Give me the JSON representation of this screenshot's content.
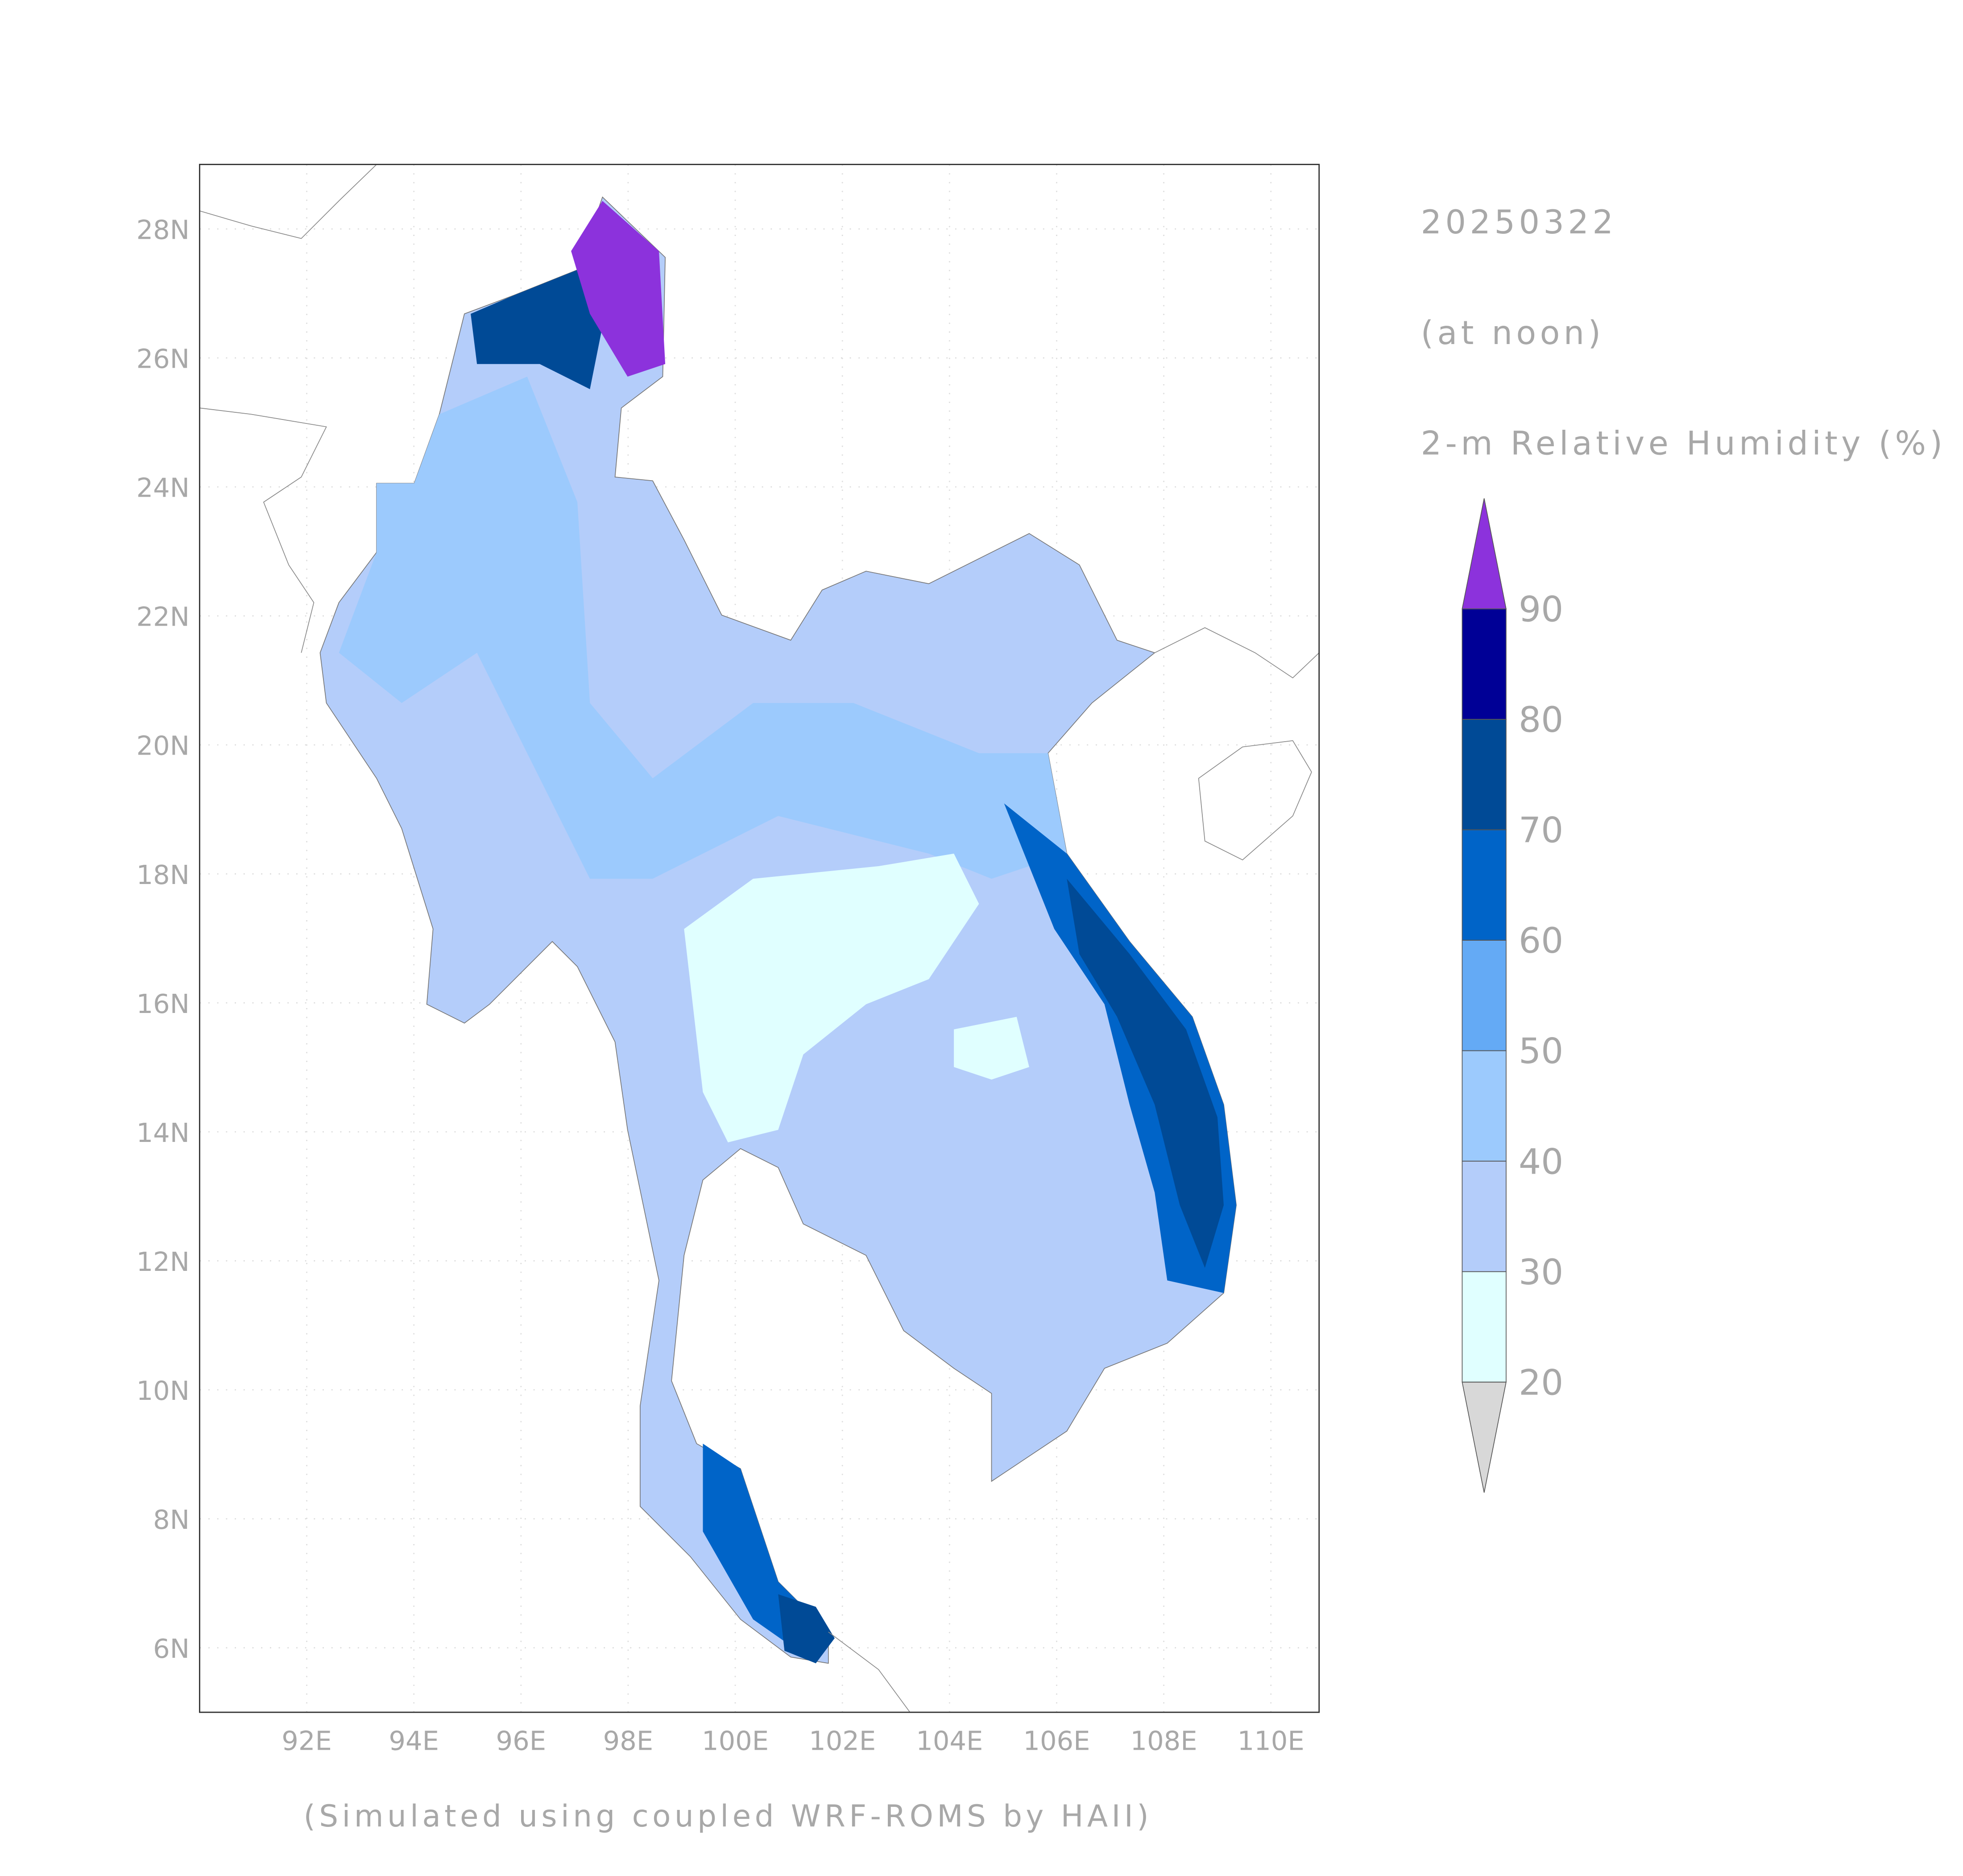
{
  "title": "20250322",
  "subtitle": "(at noon)",
  "variable": "2-m Relative Humidity (%)",
  "footer": "(Simulated using coupled WRF-ROMS by HAII)",
  "map": {
    "lon_range": [
      90,
      110.9
    ],
    "lat_range": [
      5,
      29
    ],
    "lon_ticks": [
      {
        "value": 92,
        "label": "92E"
      },
      {
        "value": 94,
        "label": "94E"
      },
      {
        "value": 96,
        "label": "96E"
      },
      {
        "value": 98,
        "label": "98E"
      },
      {
        "value": 100,
        "label": "100E"
      },
      {
        "value": 102,
        "label": "102E"
      },
      {
        "value": 104,
        "label": "104E"
      },
      {
        "value": 106,
        "label": "106E"
      },
      {
        "value": 108,
        "label": "108E"
      },
      {
        "value": 110,
        "label": "110E"
      }
    ],
    "lat_ticks": [
      {
        "value": 6,
        "label": "6N"
      },
      {
        "value": 8,
        "label": "8N"
      },
      {
        "value": 10,
        "label": "10N"
      },
      {
        "value": 12,
        "label": "12N"
      },
      {
        "value": 14,
        "label": "14N"
      },
      {
        "value": 16,
        "label": "16N"
      },
      {
        "value": 18,
        "label": "18N"
      },
      {
        "value": 20,
        "label": "20N"
      },
      {
        "value": 22,
        "label": "22N"
      },
      {
        "value": 24,
        "label": "24N"
      },
      {
        "value": 26,
        "label": "26N"
      },
      {
        "value": 28,
        "label": "28N"
      }
    ]
  },
  "colorbar": {
    "levels": [
      20,
      30,
      40,
      50,
      60,
      70,
      80,
      90
    ],
    "colors": [
      "#e0ffff",
      "#b4cdfa",
      "#9ccafd",
      "#64aaf5",
      "#0064c8",
      "#004a96",
      "#000096"
    ],
    "under_color": "#d8d8d8",
    "over_color": "#8c32dc"
  }
}
